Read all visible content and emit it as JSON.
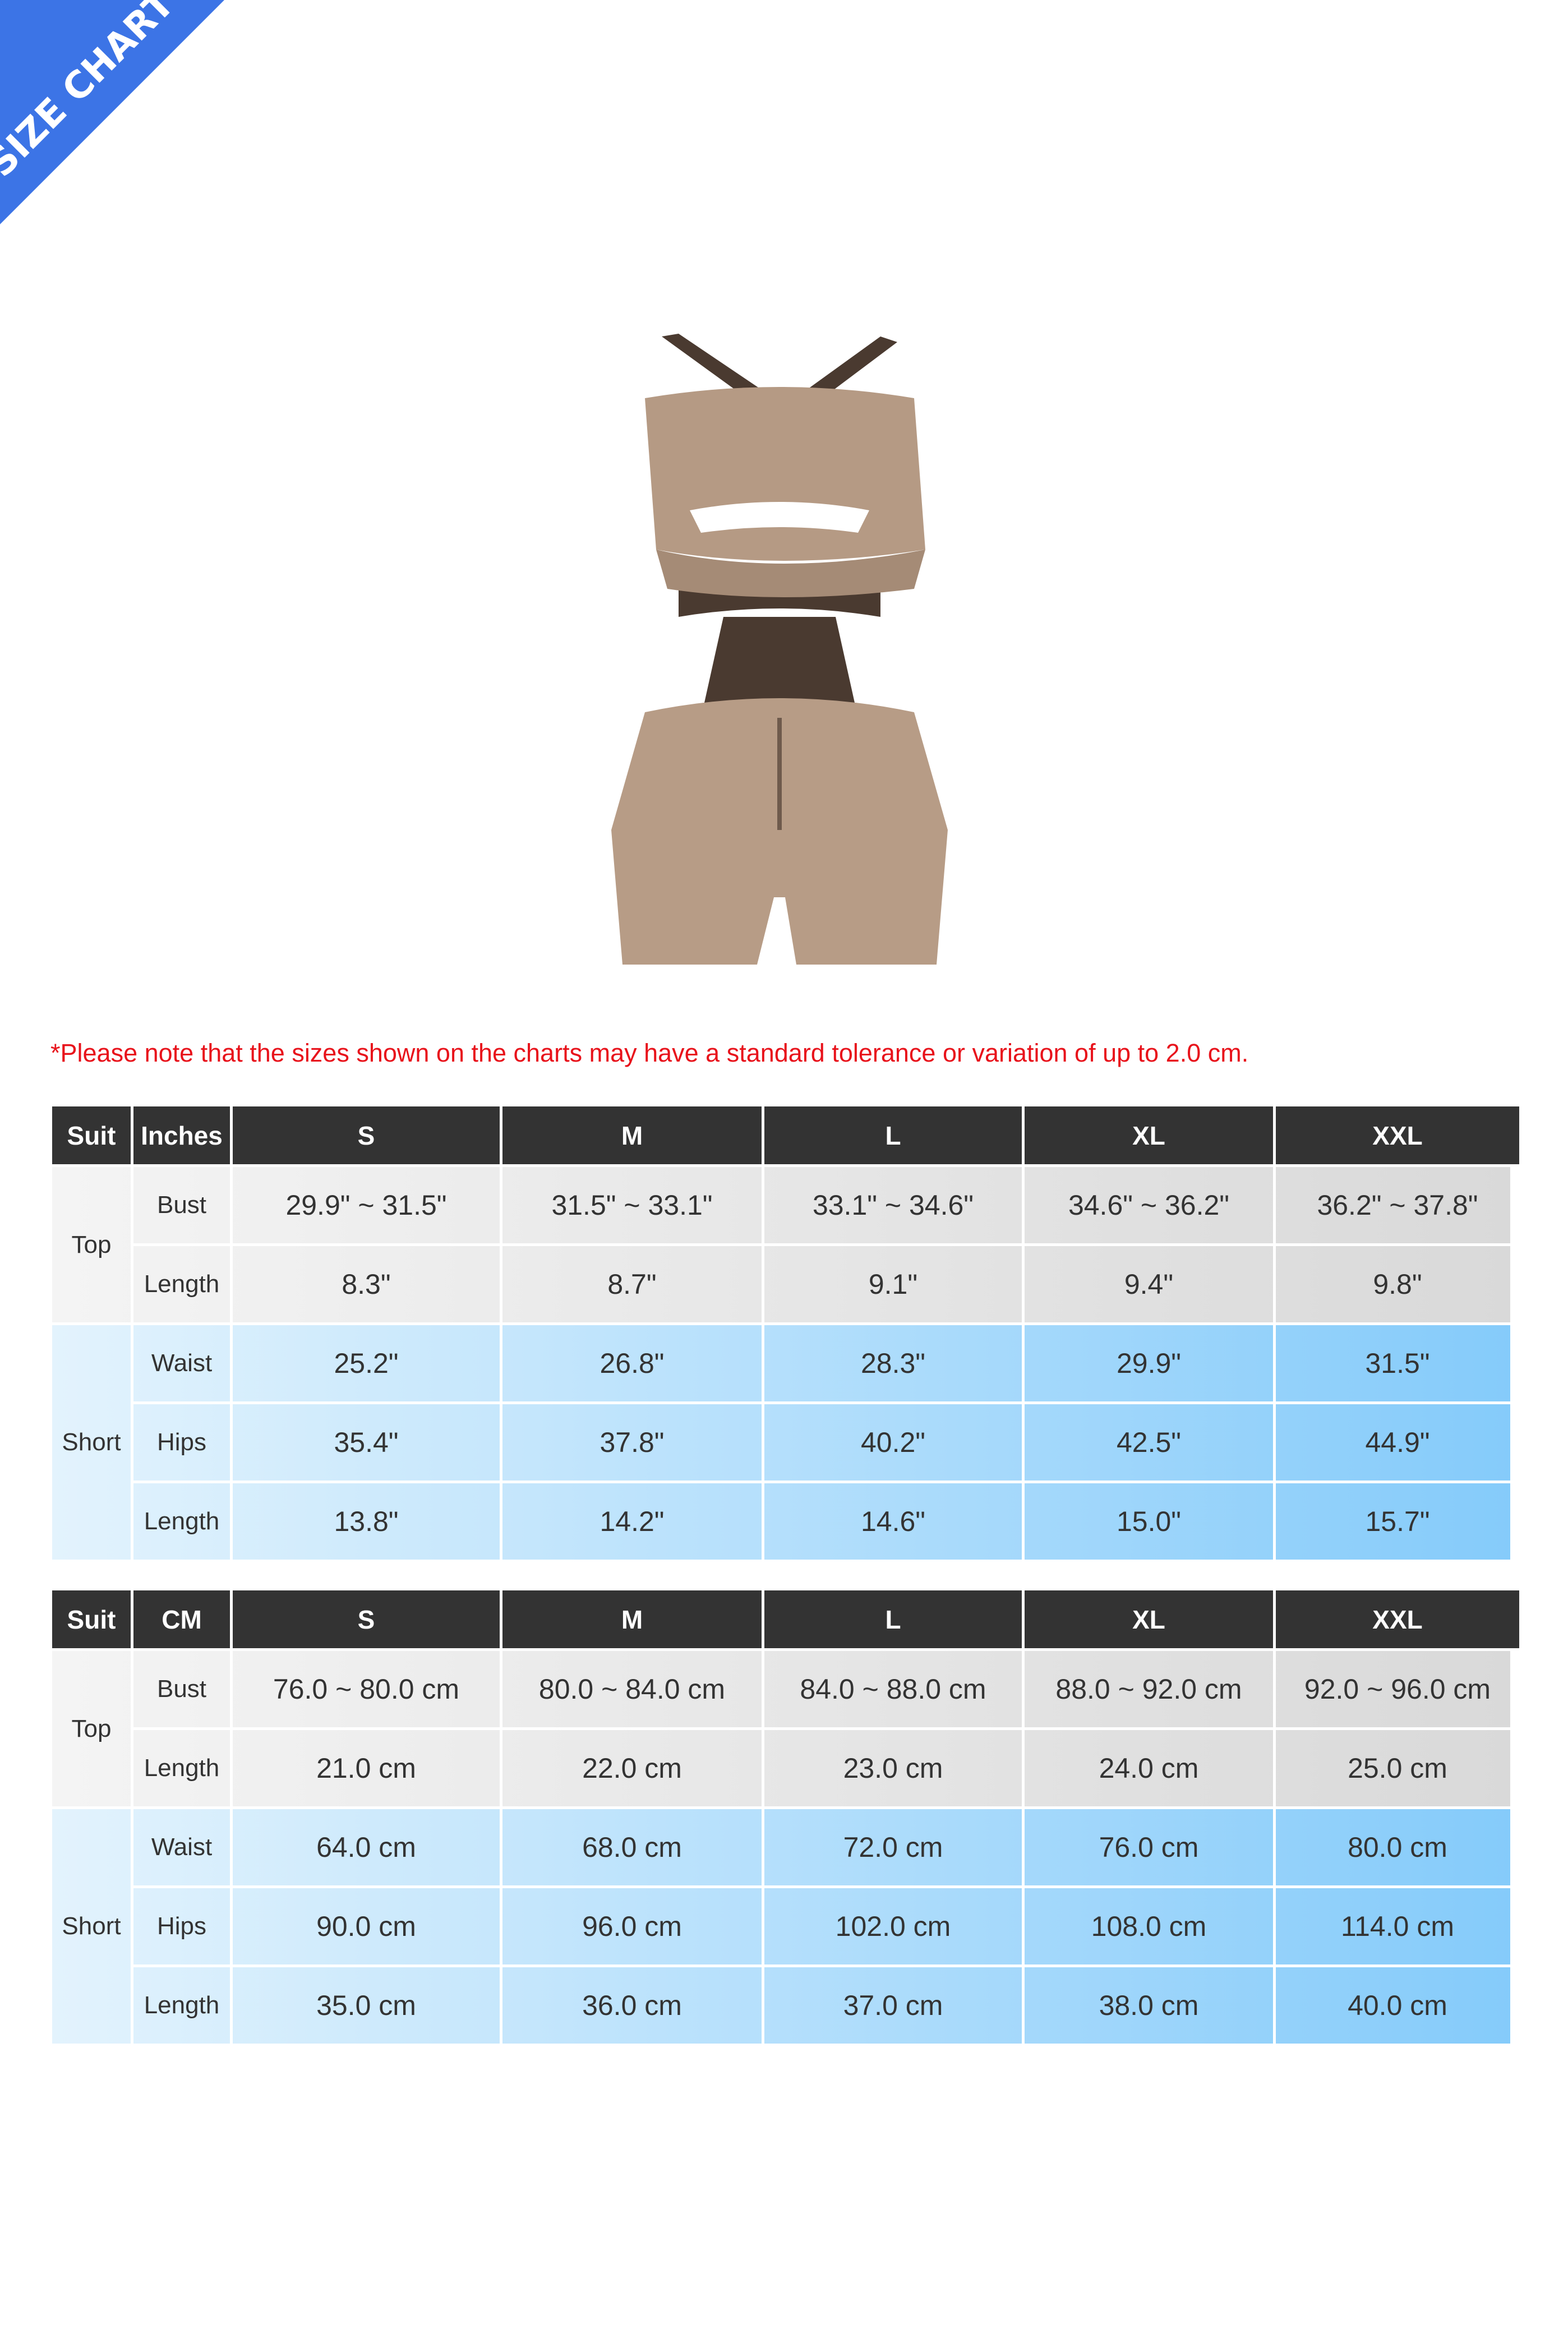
{
  "banner": {
    "text": "SIZE CHART",
    "color": "#3c74e6"
  },
  "note": "*Please note that the sizes shown on the charts may have a standard tolerance or variation of up to 2.0 cm.",
  "colors": {
    "header": "#333333",
    "grey_start": "#f4f4f4",
    "grey_end": "#d9d9d9",
    "blue_start": "#e3f3fd",
    "blue_end": "#85cbfa",
    "note": "#e8121b"
  },
  "tables": [
    {
      "unit": "Inches",
      "suit_label": "Suit",
      "sizes": [
        "S",
        "M",
        "L",
        "XL",
        "XXL"
      ],
      "groups": [
        {
          "name": "Top",
          "rows": [
            {
              "label": "Bust",
              "values": [
                "29.9\" ~ 31.5\"",
                "31.5\" ~ 33.1\"",
                "33.1\" ~ 34.6\"",
                "34.6\" ~ 36.2\"",
                "36.2\" ~ 37.8\""
              ]
            },
            {
              "label": "Length",
              "values": [
                "8.3\"",
                "8.7\"",
                "9.1\"",
                "9.4\"",
                "9.8\""
              ]
            }
          ]
        },
        {
          "name": "Short",
          "rows": [
            {
              "label": "Waist",
              "values": [
                "25.2\"",
                "26.8\"",
                "28.3\"",
                "29.9\"",
                "31.5\""
              ]
            },
            {
              "label": "Hips",
              "values": [
                "35.4\"",
                "37.8\"",
                "40.2\"",
                "42.5\"",
                "44.9\""
              ]
            },
            {
              "label": "Length",
              "values": [
                "13.8\"",
                "14.2\"",
                "14.6\"",
                "15.0\"",
                "15.7\""
              ]
            }
          ]
        }
      ]
    },
    {
      "unit": "CM",
      "suit_label": "Suit",
      "sizes": [
        "S",
        "M",
        "L",
        "XL",
        "XXL"
      ],
      "groups": [
        {
          "name": "Top",
          "rows": [
            {
              "label": "Bust",
              "values": [
                "76.0 ~ 80.0 cm",
                "80.0 ~ 84.0 cm",
                "84.0 ~ 88.0 cm",
                "88.0 ~ 92.0 cm",
                "92.0 ~ 96.0 cm"
              ]
            },
            {
              "label": "Length",
              "values": [
                "21.0 cm",
                "22.0 cm",
                "23.0 cm",
                "24.0 cm",
                "25.0 cm"
              ]
            }
          ]
        },
        {
          "name": "Short",
          "rows": [
            {
              "label": "Waist",
              "values": [
                "64.0 cm",
                "68.0 cm",
                "72.0 cm",
                "76.0 cm",
                "80.0 cm"
              ]
            },
            {
              "label": "Hips",
              "values": [
                "90.0 cm",
                "96.0 cm",
                "102.0 cm",
                "108.0 cm",
                "114.0 cm"
              ]
            },
            {
              "label": "Length",
              "values": [
                "35.0 cm",
                "36.0 cm",
                "37.0 cm",
                "38.0 cm",
                "40.0 cm"
              ]
            }
          ]
        }
      ]
    }
  ]
}
